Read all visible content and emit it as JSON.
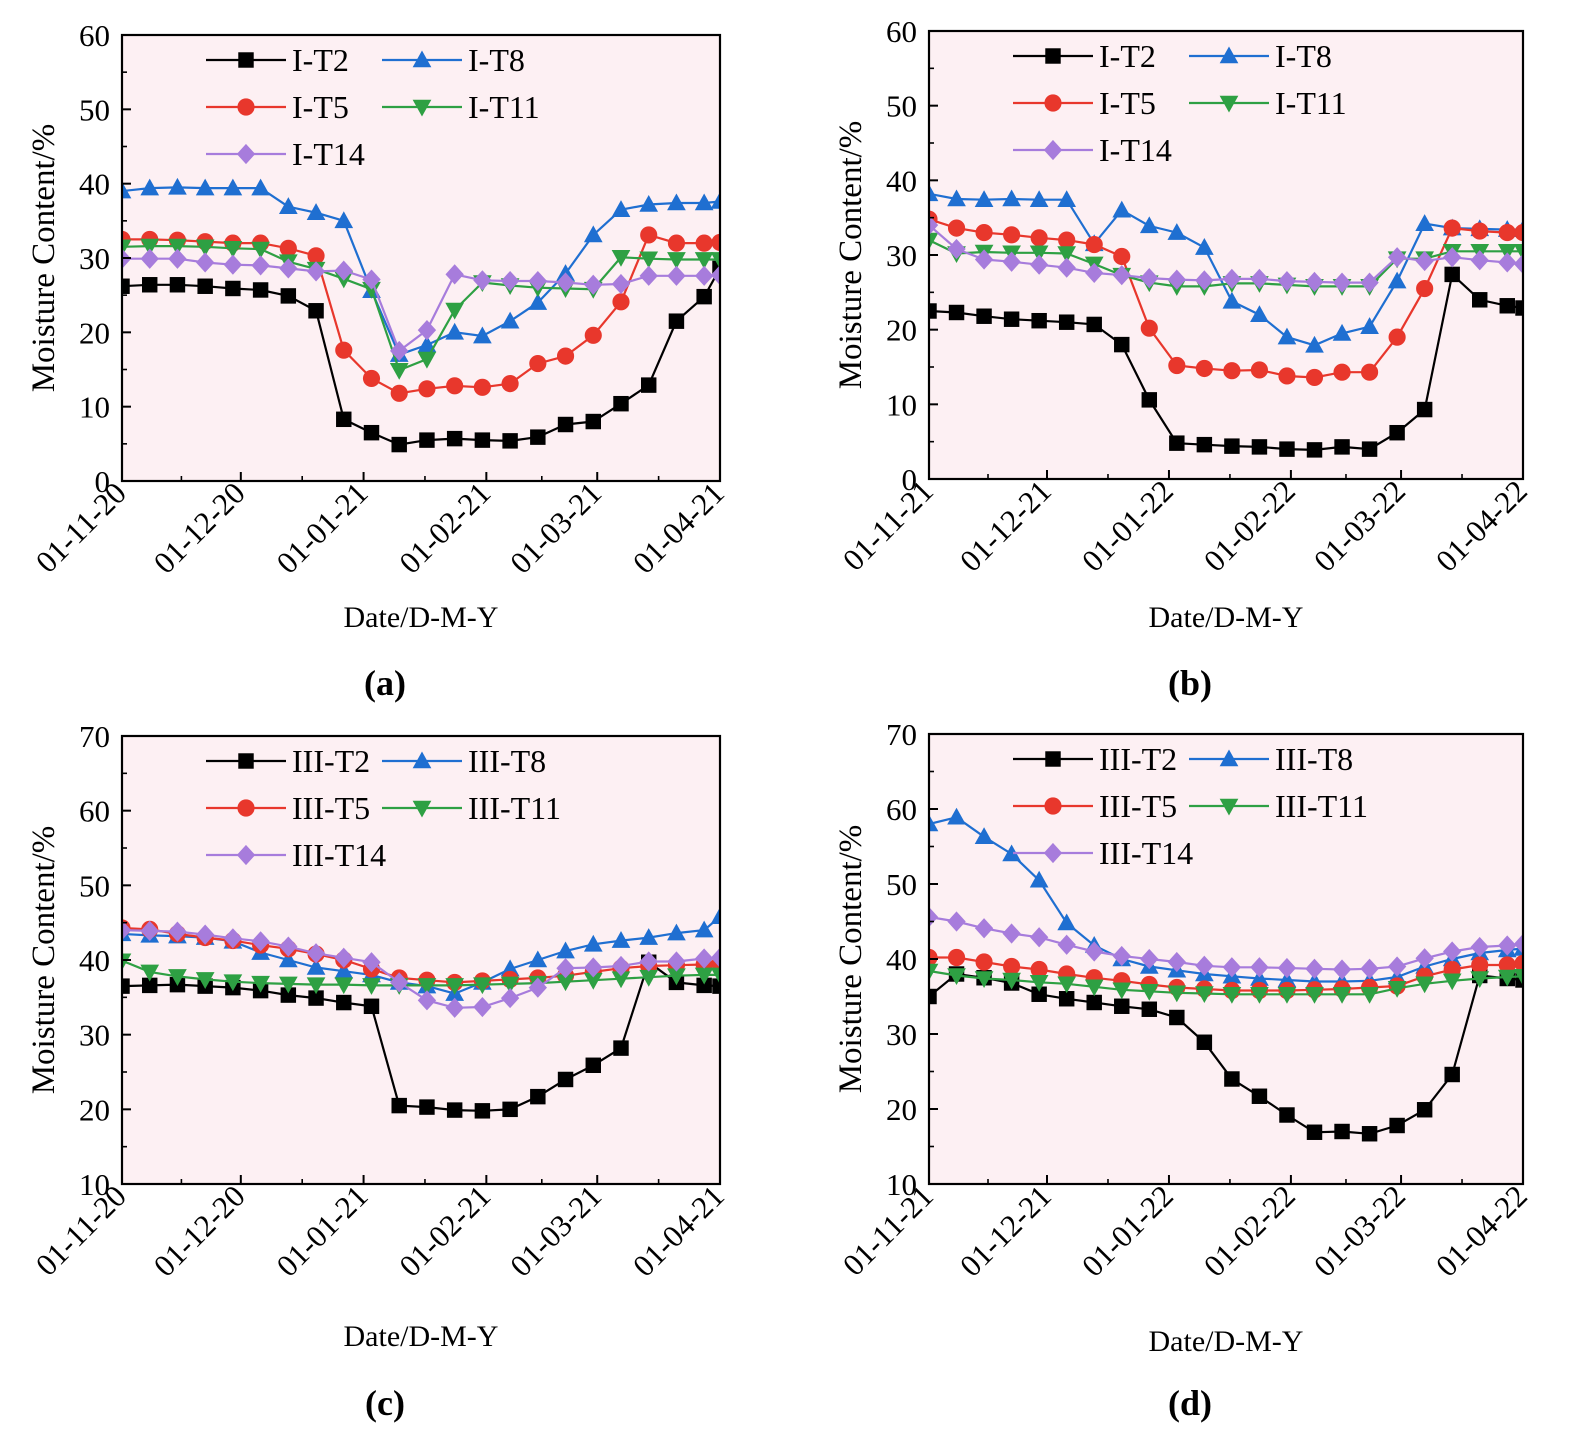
{
  "colors": {
    "plot_bg": "#fdf0f3",
    "T2": "#000000",
    "T8": "#1f6fd1",
    "T5": "#e8372c",
    "T11": "#2ea043",
    "T14": "#a77cdc"
  },
  "chart_data": [
    {
      "type": "line",
      "panel_label": "(a)",
      "xlabel": "Date/D-M-Y",
      "ylabel": "Moisture Content/%",
      "ylim": [
        0,
        60
      ],
      "yticks": [
        0,
        10,
        20,
        30,
        40,
        50,
        60
      ],
      "xlim": [
        0,
        151
      ],
      "xticks": [
        0,
        30,
        61,
        92,
        120,
        151
      ],
      "xtick_labels": [
        "01-11-20",
        "01-12-20",
        "01-01-21",
        "01-02-21",
        "01-03-21",
        "01-04-21"
      ],
      "x": [
        0,
        7,
        14,
        21,
        28,
        35,
        42,
        49,
        56,
        63,
        70,
        77,
        84,
        91,
        98,
        105,
        112,
        119,
        126,
        133,
        140,
        147,
        151
      ],
      "series": [
        {
          "name": "I-T2",
          "key": "T2",
          "marker": "square",
          "values": [
            26.2,
            26.4,
            26.4,
            26.2,
            25.9,
            25.7,
            24.9,
            22.9,
            8.3,
            6.5,
            4.9,
            5.5,
            5.7,
            5.5,
            5.4,
            5.9,
            7.6,
            8.0,
            10.4,
            12.9,
            21.5,
            24.8,
            28.6
          ]
        },
        {
          "name": "I-T8",
          "key": "T8",
          "marker": "triangle-up",
          "values": [
            39.0,
            39.4,
            39.5,
            39.4,
            39.4,
            39.4,
            36.9,
            36.1,
            35.0,
            25.6,
            17.0,
            18.3,
            20.0,
            19.5,
            21.5,
            24.0,
            27.9,
            33.1,
            36.5,
            37.2,
            37.4,
            37.4,
            37.6
          ]
        },
        {
          "name": "I-T5",
          "key": "T5",
          "marker": "circle",
          "values": [
            32.5,
            32.5,
            32.4,
            32.2,
            32.0,
            32.0,
            31.3,
            30.3,
            17.6,
            13.8,
            11.8,
            12.4,
            12.8,
            12.6,
            13.1,
            15.8,
            16.8,
            19.6,
            24.1,
            33.1,
            32.0,
            32.0,
            32.1
          ]
        },
        {
          "name": "I-T11",
          "key": "T11",
          "marker": "triangle-down",
          "values": [
            31.5,
            31.6,
            31.6,
            31.5,
            31.3,
            31.2,
            29.5,
            28.5,
            27.2,
            25.8,
            14.9,
            16.4,
            23.0,
            26.7,
            26.3,
            26.0,
            25.9,
            25.8,
            30.1,
            29.9,
            29.8,
            29.8,
            29.8
          ]
        },
        {
          "name": "I-T14",
          "key": "T14",
          "marker": "diamond",
          "values": [
            29.9,
            29.9,
            29.9,
            29.4,
            29.1,
            29.0,
            28.6,
            28.2,
            28.3,
            27.1,
            17.5,
            20.3,
            27.8,
            27.0,
            26.9,
            26.9,
            26.7,
            26.4,
            26.5,
            27.6,
            27.6,
            27.6,
            27.7
          ]
        }
      ]
    },
    {
      "type": "line",
      "panel_label": "(b)",
      "xlabel": "Date/D-M-Y",
      "ylabel": "Moisture Content/%",
      "ylim": [
        0,
        60
      ],
      "yticks": [
        0,
        10,
        20,
        30,
        40,
        50,
        60
      ],
      "xlim": [
        0,
        151
      ],
      "xticks": [
        0,
        30,
        61,
        92,
        120,
        151
      ],
      "xtick_labels": [
        "01-11-21",
        "01-12-21",
        "01-01-22",
        "01-02-22",
        "01-03-22",
        "01-04-22"
      ],
      "x": [
        0,
        7,
        14,
        21,
        28,
        35,
        42,
        49,
        56,
        63,
        70,
        77,
        84,
        91,
        98,
        105,
        112,
        119,
        126,
        133,
        140,
        147,
        151
      ],
      "series": [
        {
          "name": "I-T2",
          "key": "T2",
          "marker": "square",
          "values": [
            22.5,
            22.3,
            21.8,
            21.4,
            21.2,
            21.0,
            20.7,
            18.0,
            10.6,
            4.8,
            4.6,
            4.4,
            4.3,
            4.0,
            3.9,
            4.3,
            4.0,
            6.2,
            9.3,
            27.4,
            24.0,
            23.2,
            22.9
          ]
        },
        {
          "name": "I-T8",
          "key": "T8",
          "marker": "triangle-up",
          "values": [
            38.2,
            37.5,
            37.4,
            37.5,
            37.4,
            37.4,
            31.5,
            36.0,
            33.9,
            33.0,
            31.0,
            23.8,
            22.0,
            19.0,
            17.9,
            19.5,
            20.4,
            26.5,
            34.2,
            33.6,
            33.5,
            33.4,
            33.4
          ]
        },
        {
          "name": "I-T5",
          "key": "T5",
          "marker": "circle",
          "values": [
            34.8,
            33.6,
            33.0,
            32.7,
            32.3,
            32.0,
            31.4,
            29.8,
            20.2,
            15.2,
            14.8,
            14.5,
            14.6,
            13.8,
            13.6,
            14.3,
            14.3,
            19.0,
            25.5,
            33.6,
            33.2,
            33.0,
            33.0
          ]
        },
        {
          "name": "I-T11",
          "key": "T11",
          "marker": "triangle-down",
          "values": [
            32.0,
            30.2,
            30.4,
            30.3,
            30.3,
            30.2,
            28.8,
            27.3,
            26.3,
            25.8,
            25.8,
            26.2,
            26.2,
            26.0,
            25.8,
            25.8,
            25.8,
            29.5,
            29.5,
            30.5,
            30.5,
            30.5,
            30.5
          ]
        },
        {
          "name": "I-T14",
          "key": "T14",
          "marker": "diamond",
          "values": [
            34.0,
            30.8,
            29.4,
            29.1,
            28.7,
            28.3,
            27.6,
            27.3,
            26.9,
            26.7,
            26.6,
            26.8,
            26.8,
            26.5,
            26.4,
            26.3,
            26.3,
            29.7,
            29.2,
            29.7,
            29.3,
            29.0,
            28.8
          ]
        }
      ]
    },
    {
      "type": "line",
      "panel_label": "(c)",
      "xlabel": "Date/D-M-Y",
      "ylabel": "Moisture Content/%",
      "ylim": [
        10,
        70
      ],
      "yticks": [
        10,
        20,
        30,
        40,
        50,
        60,
        70
      ],
      "xlim": [
        0,
        151
      ],
      "xticks": [
        0,
        30,
        61,
        92,
        120,
        151
      ],
      "xtick_labels": [
        "01-11-20",
        "01-12-20",
        "01-01-21",
        "01-02-21",
        "01-03-21",
        "01-04-21"
      ],
      "x": [
        0,
        7,
        14,
        21,
        28,
        35,
        42,
        49,
        56,
        63,
        70,
        77,
        84,
        91,
        98,
        105,
        112,
        119,
        126,
        133,
        140,
        147,
        151
      ],
      "series": [
        {
          "name": "III-T2",
          "key": "T2",
          "marker": "square",
          "values": [
            36.5,
            36.6,
            36.7,
            36.5,
            36.3,
            35.9,
            35.3,
            34.9,
            34.3,
            33.8,
            20.5,
            20.3,
            19.9,
            19.8,
            20.0,
            21.7,
            24.0,
            25.9,
            28.2,
            39.7,
            37.0,
            36.6,
            36.5
          ]
        },
        {
          "name": "III-T8",
          "key": "T8",
          "marker": "triangle-up",
          "values": [
            43.5,
            43.3,
            43.2,
            43.0,
            42.5,
            41.0,
            40.0,
            39.0,
            38.5,
            38.0,
            37.0,
            36.5,
            35.5,
            37.0,
            38.8,
            40.0,
            41.2,
            42.1,
            42.6,
            43.0,
            43.6,
            44.0,
            45.8
          ]
        },
        {
          "name": "III-T5",
          "key": "T5",
          "marker": "circle",
          "values": [
            44.3,
            44.1,
            43.5,
            43.0,
            42.6,
            42.0,
            41.5,
            40.8,
            40.0,
            38.8,
            37.6,
            37.3,
            37.0,
            37.2,
            37.4,
            37.6,
            37.9,
            38.4,
            38.9,
            39.2,
            39.3,
            39.4,
            39.5
          ]
        },
        {
          "name": "III-T11",
          "key": "T11",
          "marker": "triangle-down",
          "values": [
            39.9,
            38.4,
            37.8,
            37.4,
            37.1,
            36.9,
            36.8,
            36.7,
            36.7,
            36.6,
            36.6,
            36.6,
            36.6,
            36.7,
            36.8,
            36.9,
            37.1,
            37.3,
            37.5,
            37.7,
            37.9,
            38.0,
            38.0
          ]
        },
        {
          "name": "III-T14",
          "key": "T14",
          "marker": "diamond",
          "values": [
            44.0,
            43.9,
            43.8,
            43.4,
            42.9,
            42.5,
            41.8,
            40.9,
            40.3,
            39.7,
            37.0,
            34.6,
            33.6,
            33.7,
            34.9,
            36.3,
            38.9,
            39.0,
            39.2,
            39.8,
            39.8,
            40.2,
            40.3
          ]
        }
      ]
    },
    {
      "type": "line",
      "panel_label": "(d)",
      "xlabel": "Date/D-M-Y",
      "ylabel": "Moisture Content/%",
      "ylim": [
        10,
        70
      ],
      "yticks": [
        10,
        20,
        30,
        40,
        50,
        60,
        70
      ],
      "xlim": [
        0,
        151
      ],
      "xticks": [
        0,
        30,
        61,
        92,
        120,
        151
      ],
      "xtick_labels": [
        "01-11-21",
        "01-12-21",
        "01-01-22",
        "01-02-22",
        "01-03-22",
        "01-04-22"
      ],
      "x": [
        0,
        7,
        14,
        21,
        28,
        35,
        42,
        49,
        56,
        63,
        70,
        77,
        84,
        91,
        98,
        105,
        112,
        119,
        126,
        133,
        140,
        147,
        151
      ],
      "series": [
        {
          "name": "III-T2",
          "key": "T2",
          "marker": "square",
          "values": [
            35.0,
            38.0,
            37.5,
            36.8,
            35.3,
            34.7,
            34.2,
            33.7,
            33.3,
            32.2,
            28.9,
            24.0,
            21.7,
            19.2,
            16.9,
            17.0,
            16.7,
            17.8,
            19.9,
            24.6,
            37.8,
            37.4,
            37.2
          ]
        },
        {
          "name": "III-T8",
          "key": "T8",
          "marker": "triangle-up",
          "values": [
            58.0,
            58.9,
            56.3,
            54.0,
            50.5,
            44.8,
            41.8,
            40.0,
            39.0,
            38.5,
            38.0,
            37.7,
            37.4,
            37.2,
            37.0,
            37.0,
            37.1,
            37.6,
            39.0,
            40.0,
            40.8,
            41.2,
            41.4
          ]
        },
        {
          "name": "III-T5",
          "key": "T5",
          "marker": "circle",
          "values": [
            40.2,
            40.2,
            39.6,
            39.0,
            38.6,
            38.0,
            37.5,
            37.1,
            36.6,
            36.2,
            36.0,
            35.8,
            35.8,
            35.8,
            35.9,
            36.0,
            36.2,
            36.4,
            37.7,
            38.6,
            39.2,
            39.2,
            39.4
          ]
        },
        {
          "name": "III-T11",
          "key": "T11",
          "marker": "triangle-down",
          "values": [
            38.4,
            37.8,
            37.4,
            37.2,
            36.9,
            36.7,
            36.3,
            35.9,
            35.7,
            35.5,
            35.4,
            35.3,
            35.3,
            35.3,
            35.3,
            35.3,
            35.3,
            36.1,
            36.7,
            37.1,
            37.4,
            37.6,
            37.7
          ]
        },
        {
          "name": "III-T14",
          "key": "T14",
          "marker": "diamond",
          "values": [
            45.6,
            45.0,
            44.1,
            43.4,
            42.9,
            41.9,
            41.0,
            40.4,
            40.0,
            39.6,
            39.1,
            38.9,
            38.9,
            38.8,
            38.7,
            38.6,
            38.7,
            39.0,
            40.1,
            41.0,
            41.6,
            41.8,
            42.0
          ]
        }
      ]
    }
  ]
}
